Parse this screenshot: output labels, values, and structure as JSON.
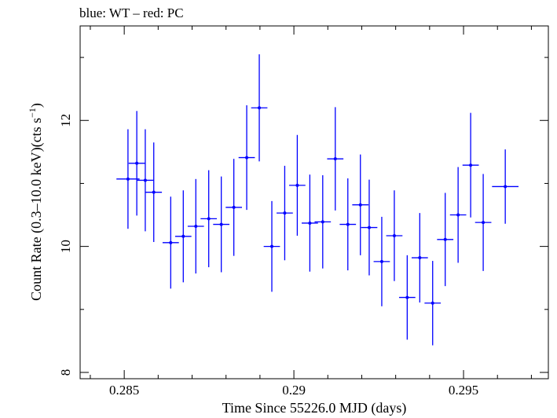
{
  "chart_data": {
    "type": "scatter",
    "title": "blue: WT – red: PC",
    "xlabel": "Time Since 55226.0 MJD (days)",
    "ylabel_main": "Count Rate (0.3–10.0 keV)(cts s",
    "ylabel_sup": "−1",
    "ylabel_close": ")",
    "xlim": [
      0.2837,
      0.2975
    ],
    "ylim": [
      7.9,
      13.5
    ],
    "x_ticks": [
      0.285,
      0.29,
      0.295
    ],
    "x_tick_labels": [
      "0.285",
      "0.29",
      "0.295"
    ],
    "x_minor_ticks": [
      0.284,
      0.286,
      0.287,
      0.288,
      0.289,
      0.291,
      0.292,
      0.293,
      0.294,
      0.296,
      0.297
    ],
    "y_ticks": [
      8,
      10,
      12
    ],
    "y_tick_labels": [
      "8",
      "10",
      "12"
    ],
    "y_minor_ticks": [
      9,
      11,
      13
    ],
    "grid": false,
    "legend": "none",
    "series": [
      {
        "color": "#0000ff",
        "points": [
          {
            "x": 0.28511,
            "xerr": 0.00034,
            "y": 11.07,
            "yerr": 0.79
          },
          {
            "x": 0.28537,
            "xerr": 0.00024,
            "y": 11.32,
            "yerr": 0.83
          },
          {
            "x": 0.28562,
            "xerr": 0.00024,
            "y": 11.05,
            "yerr": 0.81
          },
          {
            "x": 0.28587,
            "xerr": 0.00024,
            "y": 10.86,
            "yerr": 0.79
          },
          {
            "x": 0.28637,
            "xerr": 0.00024,
            "y": 10.06,
            "yerr": 0.73
          },
          {
            "x": 0.28674,
            "xerr": 0.00024,
            "y": 10.16,
            "yerr": 0.73
          },
          {
            "x": 0.28711,
            "xerr": 0.00024,
            "y": 10.32,
            "yerr": 0.75
          },
          {
            "x": 0.28749,
            "xerr": 0.00024,
            "y": 10.44,
            "yerr": 0.77
          },
          {
            "x": 0.28786,
            "xerr": 0.00024,
            "y": 10.35,
            "yerr": 0.76
          },
          {
            "x": 0.28823,
            "xerr": 0.00024,
            "y": 10.62,
            "yerr": 0.77
          },
          {
            "x": 0.28861,
            "xerr": 0.00024,
            "y": 11.41,
            "yerr": 0.83
          },
          {
            "x": 0.28898,
            "xerr": 0.00024,
            "y": 12.2,
            "yerr": 0.85
          },
          {
            "x": 0.28935,
            "xerr": 0.00024,
            "y": 10.0,
            "yerr": 0.72
          },
          {
            "x": 0.28973,
            "xerr": 0.00024,
            "y": 10.53,
            "yerr": 0.75
          },
          {
            "x": 0.2901,
            "xerr": 0.00024,
            "y": 10.97,
            "yerr": 0.8
          },
          {
            "x": 0.29047,
            "xerr": 0.00024,
            "y": 10.37,
            "yerr": 0.77
          },
          {
            "x": 0.29085,
            "xerr": 0.00024,
            "y": 10.39,
            "yerr": 0.74
          },
          {
            "x": 0.29122,
            "xerr": 0.00024,
            "y": 11.39,
            "yerr": 0.82
          },
          {
            "x": 0.29159,
            "xerr": 0.00024,
            "y": 10.35,
            "yerr": 0.73
          },
          {
            "x": 0.29196,
            "xerr": 0.00024,
            "y": 10.66,
            "yerr": 0.8
          },
          {
            "x": 0.29222,
            "xerr": 0.00024,
            "y": 10.3,
            "yerr": 0.76
          },
          {
            "x": 0.29259,
            "xerr": 0.00024,
            "y": 9.76,
            "yerr": 0.71
          },
          {
            "x": 0.29296,
            "xerr": 0.00024,
            "y": 10.17,
            "yerr": 0.72
          },
          {
            "x": 0.29334,
            "xerr": 0.00024,
            "y": 9.19,
            "yerr": 0.67
          },
          {
            "x": 0.29371,
            "xerr": 0.00024,
            "y": 9.82,
            "yerr": 0.71
          },
          {
            "x": 0.29409,
            "xerr": 0.00024,
            "y": 9.1,
            "yerr": 0.67
          },
          {
            "x": 0.29446,
            "xerr": 0.00024,
            "y": 10.11,
            "yerr": 0.74
          },
          {
            "x": 0.29484,
            "xerr": 0.00024,
            "y": 10.5,
            "yerr": 0.76
          },
          {
            "x": 0.29521,
            "xerr": 0.00024,
            "y": 11.29,
            "yerr": 0.83
          },
          {
            "x": 0.29558,
            "xerr": 0.00024,
            "y": 10.38,
            "yerr": 0.77
          },
          {
            "x": 0.29623,
            "xerr": 0.00039,
            "y": 10.95,
            "yerr": 0.59
          }
        ]
      }
    ]
  }
}
